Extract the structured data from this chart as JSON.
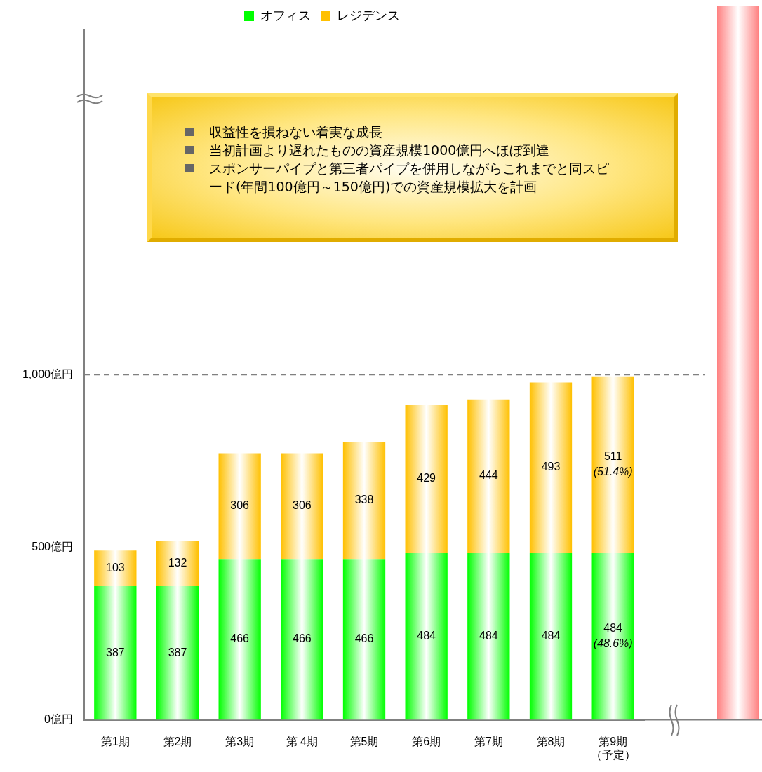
{
  "chart_data": {
    "type": "bar",
    "stacked": true,
    "categories": [
      "第1期",
      "第2期",
      "第3期",
      "第 4期",
      "第5期",
      "第6期",
      "第7期",
      "第8期",
      "第9期（予定）"
    ],
    "series": [
      {
        "name": "オフィス",
        "color": "#00ff00",
        "values": [
          387,
          387,
          466,
          466,
          466,
          484,
          484,
          484,
          484
        ],
        "value_labels": [
          "387",
          "387",
          "466",
          "466",
          "466",
          "484",
          "484",
          "484",
          "484\n(48.6%)"
        ]
      },
      {
        "name": "レジデンス",
        "color": "#ffc000",
        "values": [
          103,
          132,
          306,
          306,
          338,
          429,
          444,
          493,
          511
        ],
        "value_labels": [
          "103",
          "132",
          "306",
          "306",
          "338",
          "429",
          "444",
          "493",
          "511\n(51.4%)"
        ]
      }
    ],
    "ylim": [
      0,
      2000
    ],
    "yticks": [
      {
        "value": 0,
        "label": "0億円"
      },
      {
        "value": 500,
        "label": "500億円"
      },
      {
        "value": 1000,
        "label": "1,000億円"
      }
    ],
    "ref_lines": [
      {
        "axis": "y",
        "value": 1000,
        "line_style": "dashed",
        "color": "#808080"
      }
    ],
    "legend": "top",
    "grid": false,
    "annotations": [
      "収益性を損ねない着実な成長",
      "当初計画より遅れたものの資産規模1000億円へほぼ到達",
      "スポンサーパイプと第三者パイプを併用しながらこれまでと同スピード(年間100億円～150億円)での資産規模拡大を計画"
    ]
  }
}
